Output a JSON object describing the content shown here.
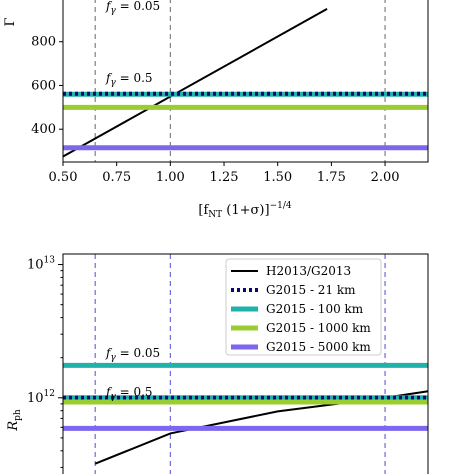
{
  "chart_data": [
    {
      "type": "line",
      "ylabel": "Γ",
      "xlabel": "[f_NT (1+σ)]^(-1/4)",
      "xlabel_main": "[f",
      "xlabel_sub": "NT",
      "xlabel_rest": " (1+σ)]",
      "xlabel_sup": "−1/4",
      "xlim": [
        0.5,
        2.2
      ],
      "ylim": [
        250,
        1000
      ],
      "x_ticks": [
        0.5,
        0.75,
        1.0,
        1.25,
        1.5,
        1.75,
        2.0
      ],
      "x_tick_labels": [
        "0.50",
        "0.75",
        "1.00",
        "1.25",
        "1.50",
        "1.75",
        "2.00"
      ],
      "y_ticks": [
        400,
        600,
        800
      ],
      "y_tick_labels": [
        "400",
        "600",
        "800"
      ],
      "vlines": [
        0.65,
        1.0,
        2.0
      ],
      "annotations": [
        {
          "text": "f_γ = 0.05",
          "x": 0.7,
          "y": 1005
        },
        {
          "text": "f_γ = 0.5",
          "x": 0.7,
          "y": 585
        }
      ],
      "series": [
        {
          "name": "H2013/G2013",
          "style": "solid",
          "color": "#000000",
          "x": [
            0.5,
            1.73
          ],
          "y": [
            275,
            950
          ]
        },
        {
          "name": "G2015 - 100 km",
          "style": "hline",
          "color": "#20b2aa",
          "y": 560
        },
        {
          "name": "G2015 - 21 km",
          "style": "dotted",
          "color": "#0a0a6e",
          "y": 562
        },
        {
          "name": "G2015 - 1000 km",
          "style": "hline",
          "color": "#9acd32",
          "y": 500
        },
        {
          "name": "G2015 - 5000 km",
          "style": "hline",
          "color": "#7b68ee",
          "y": 315
        }
      ]
    },
    {
      "type": "line",
      "ylabel": "R_ph",
      "ylabel_main": "R",
      "ylabel_sub": "ph",
      "yscale": "log",
      "xlim": [
        0.5,
        2.2
      ],
      "ylim": [
        250000000000.0,
        12000000000000.0
      ],
      "y_ticks": [
        1000000000000.0,
        10000000000000.0
      ],
      "y_tick_labels_base": [
        "10",
        "10"
      ],
      "y_tick_labels_exp": [
        "12",
        "13"
      ],
      "vlines": [
        0.65,
        1.0,
        2.0
      ],
      "annotations": [
        {
          "text": "f_γ = 0.05",
          "x": 0.7,
          "y": 1900000000000.0
        },
        {
          "text": "f_γ = 0.5",
          "x": 0.7,
          "y": 1100000000000.0
        }
      ],
      "legend": {
        "placement": "top-right",
        "entries": [
          {
            "label": "H2013/G2013",
            "style": "solid",
            "color": "#000000"
          },
          {
            "label": "G2015 - 21 km",
            "style": "dotted",
            "color": "#0a0a6e"
          },
          {
            "label": "G2015 - 100 km",
            "style": "hline",
            "color": "#20b2aa"
          },
          {
            "label": "G2015 - 1000 km",
            "style": "hline",
            "color": "#9acd32"
          },
          {
            "label": "G2015 - 5000 km",
            "style": "hline",
            "color": "#7b68ee"
          }
        ]
      },
      "series": [
        {
          "name": "H2013/G2013",
          "style": "solid",
          "color": "#000000",
          "x": [
            0.65,
            1.0,
            1.5,
            2.0,
            2.2
          ],
          "y": [
            320000000000.0,
            540000000000.0,
            790000000000.0,
            1000000000000.0,
            1120000000000.0
          ]
        },
        {
          "name": "G2015 - 100 km",
          "style": "hline",
          "color": "#20b2aa",
          "y": 1000000000000.0
        },
        {
          "name": "G2015 - 21 km",
          "style": "dotted",
          "color": "#0a0a6e",
          "y": 1000000000000.0
        },
        {
          "name": "G2015 - 1000 km",
          "style": "hline",
          "color": "#9acd32",
          "y": 930000000000.0
        },
        {
          "name": "G2015 - 5000 km",
          "style": "hline",
          "color": "#7b68ee",
          "y": 590000000000.0
        },
        {
          "name": "G2015 - 21 km (0.05)",
          "style": "dotted",
          "color": "#0a0a6e",
          "y": 1750000000000.0
        },
        {
          "name": "G2015 - 100 km (0.05)",
          "style": "hline",
          "color": "#20b2aa",
          "y": 1750000000000.0
        }
      ]
    }
  ]
}
